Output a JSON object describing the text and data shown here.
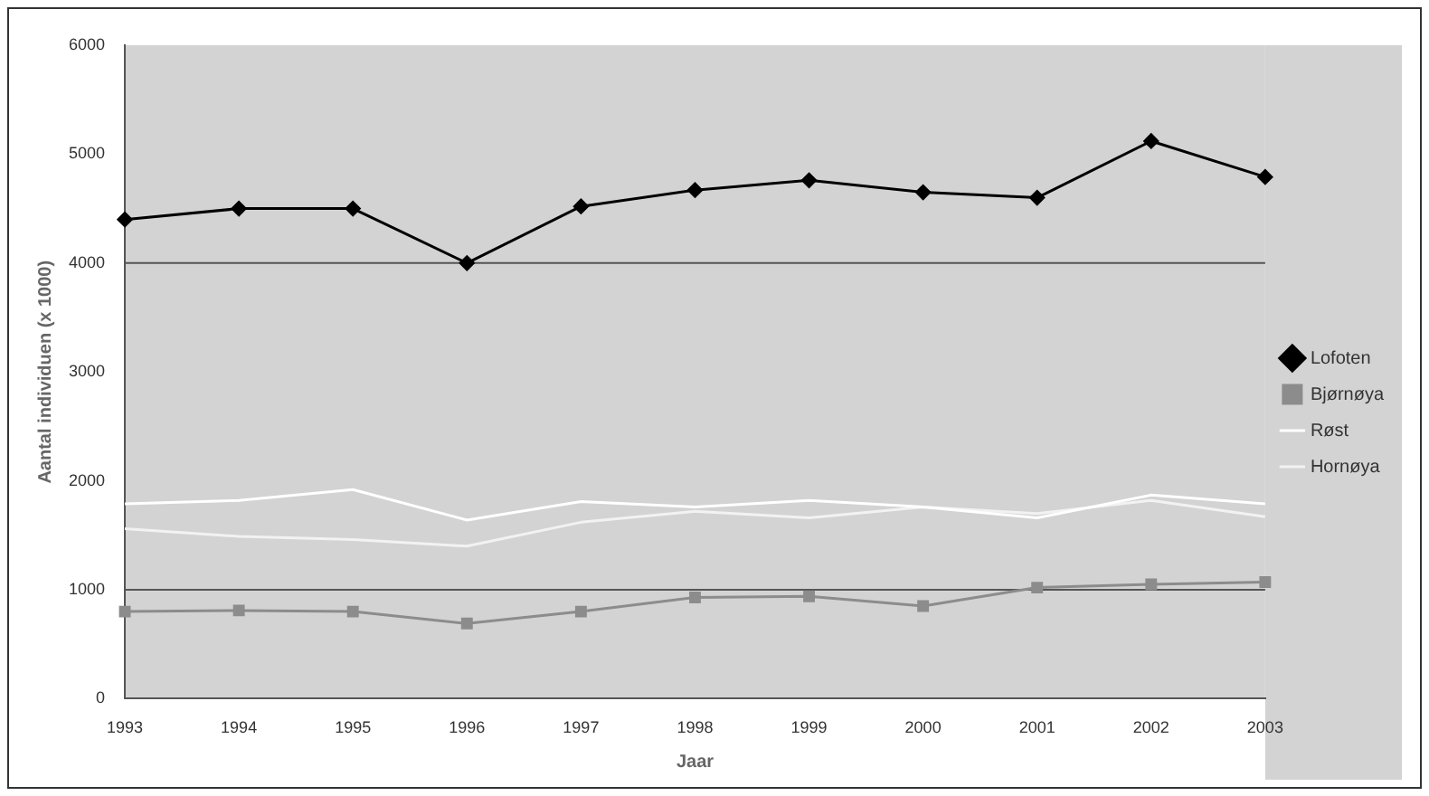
{
  "chart_data": {
    "type": "line",
    "xlabel": "Jaar",
    "ylabel": "Aantal individuen (x 1000)",
    "categories": [
      "1993",
      "1994",
      "1995",
      "1996",
      "1997",
      "1998",
      "1999",
      "2000",
      "2001",
      "2002",
      "2003"
    ],
    "series": [
      {
        "name": "Lofoten",
        "color": "#000000",
        "marker": "diamond",
        "values": [
          4400,
          4500,
          4500,
          4000,
          4520,
          4670,
          4760,
          4650,
          4600,
          5120,
          4790
        ]
      },
      {
        "name": "Bjørnøya",
        "color": "#8c8c8c",
        "marker": "square",
        "values": [
          800,
          810,
          800,
          690,
          800,
          930,
          940,
          850,
          1020,
          1050,
          1070
        ]
      },
      {
        "name": "Røst",
        "color": "#ffffff",
        "marker": "none",
        "values": [
          1790,
          1820,
          1920,
          1640,
          1810,
          1760,
          1820,
          1760,
          1660,
          1870,
          1790
        ]
      },
      {
        "name": "Hornøya",
        "color": "#f2f2f2",
        "marker": "none",
        "values": [
          1560,
          1490,
          1460,
          1400,
          1620,
          1720,
          1660,
          1760,
          1700,
          1820,
          1670
        ]
      }
    ],
    "ylim": [
      0,
      6000
    ],
    "yticks": [
      0,
      1000,
      2000,
      3000,
      4000,
      5000,
      6000
    ],
    "grid": false,
    "legend": "right",
    "ref_lines": [
      {
        "axis": "y",
        "value": 4000,
        "color": "#555555"
      },
      {
        "axis": "y",
        "value": 1000,
        "color": "#555555"
      }
    ]
  }
}
